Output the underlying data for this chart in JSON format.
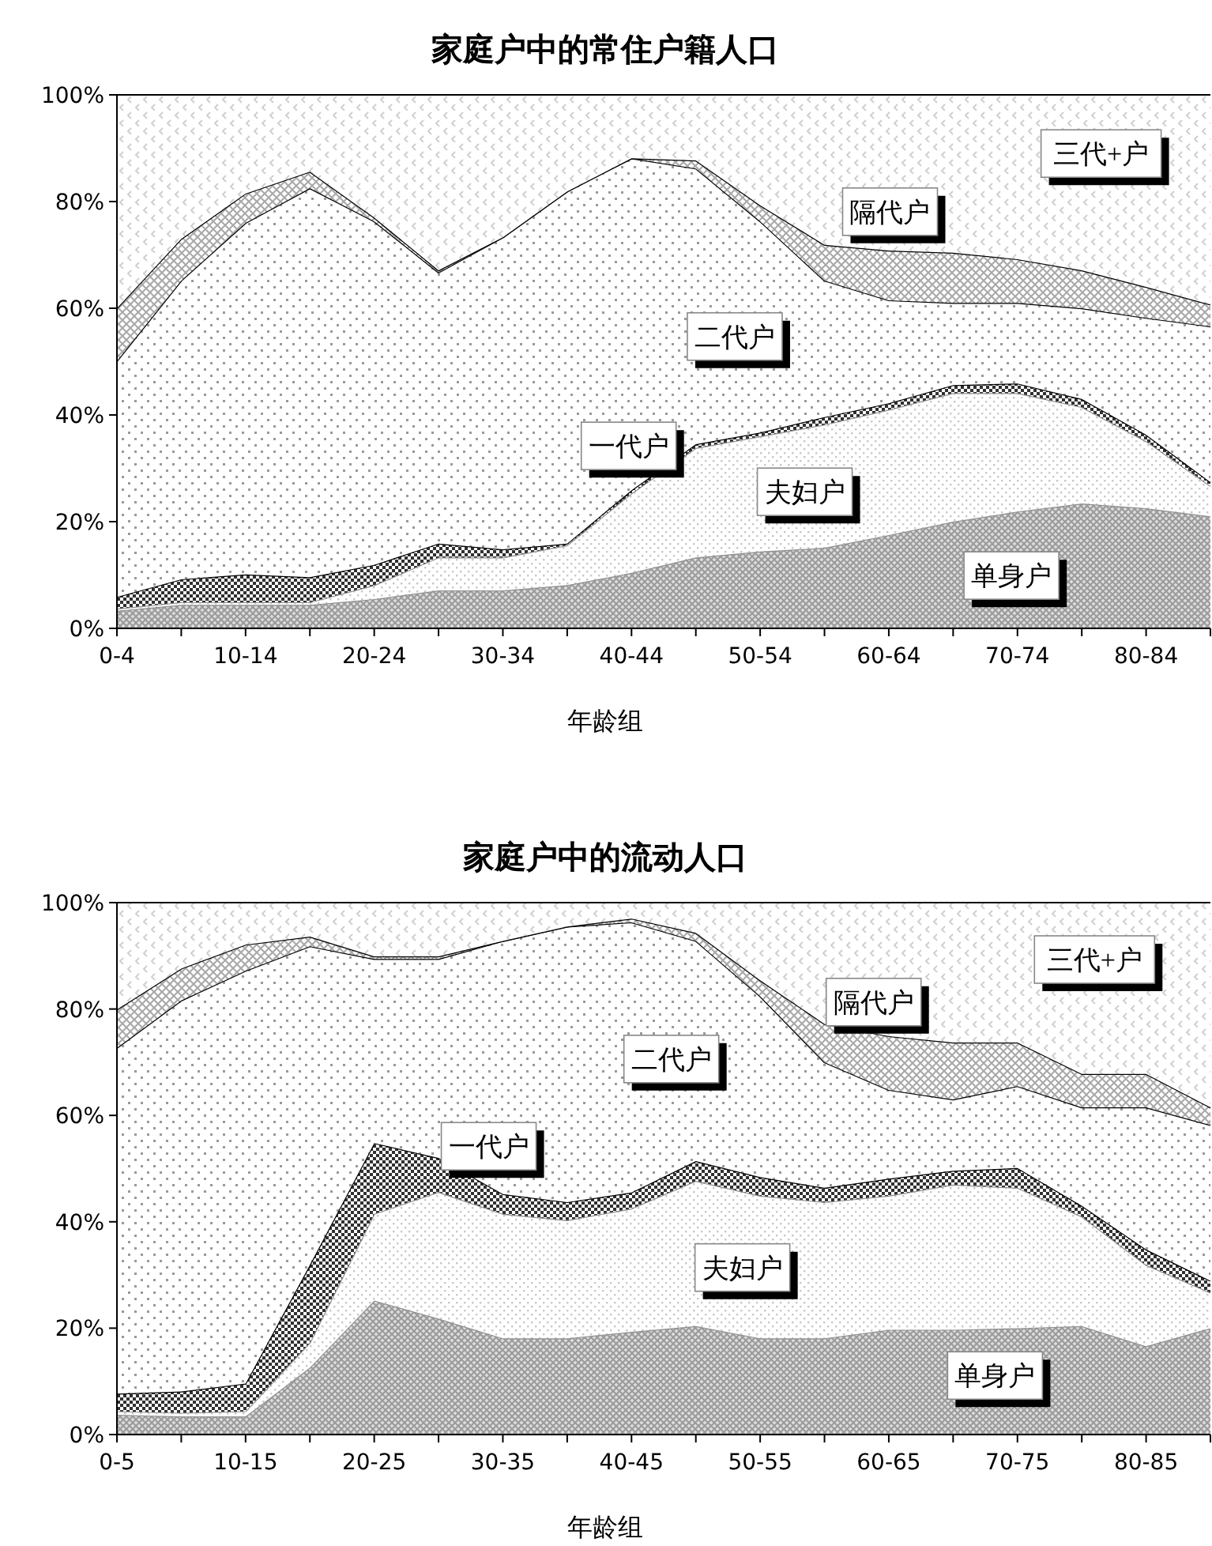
{
  "chart_data": [
    {
      "type": "area",
      "stacked": true,
      "title": "家庭户中的常住户籍人口",
      "xlabel": "年龄组",
      "grid": false,
      "categories": [
        "0-4",
        null,
        "10-14",
        null,
        "20-24",
        null,
        "30-34",
        null,
        "40-44",
        null,
        "50-54",
        null,
        "60-64",
        null,
        "70-74",
        null,
        "80-84",
        null
      ],
      "ylim": [
        0,
        100
      ],
      "yticks": [
        {
          "value": 0,
          "label": "0%"
        },
        {
          "value": 20,
          "label": "20%"
        },
        {
          "value": 40,
          "label": "40%"
        },
        {
          "value": 60,
          "label": "60%"
        },
        {
          "value": 80,
          "label": "80%"
        },
        {
          "value": 100,
          "label": "100%"
        }
      ],
      "series": [
        {
          "name": "单身户",
          "color": "#9a9a9a",
          "values": [
            3.3,
            4.4,
            4.4,
            4.4,
            5.5,
            7.1,
            7.1,
            8.1,
            10.4,
            13.3,
            14.4,
            15.1,
            17.5,
            20,
            21.9,
            23.4,
            22.5,
            21
          ]
        },
        {
          "name": "夫妇户",
          "color": "#c8c8c8",
          "values": [
            0.4,
            0.5,
            0.5,
            0.5,
            2.6,
            6.2,
            6.2,
            7.5,
            14.9,
            20.5,
            21.6,
            23.1,
            23.5,
            24.1,
            22.2,
            18.1,
            12.6,
            5.7
          ]
        },
        {
          "name": "一代户",
          "color": "#303030",
          "values": [
            2.2,
            4.3,
            5.2,
            4.7,
            3.8,
            2.6,
            1.5,
            0.3,
            0.6,
            0.7,
            0.7,
            1.4,
            1.2,
            1.5,
            1.8,
            1.5,
            1.2,
            0.7
          ]
        },
        {
          "name": "二代户",
          "color": "#e0e0e0",
          "values": [
            44.2,
            56,
            65.9,
            72.9,
            64.4,
            50.8,
            58.5,
            66,
            62.2,
            51.7,
            39.6,
            25.6,
            19.3,
            15.4,
            15.1,
            17,
            21.9,
            29.2
          ]
        },
        {
          "name": "隔代户",
          "color": "#a8a8a8",
          "values": [
            9.9,
            7.8,
            5.5,
            3.1,
            0.7,
            0.4,
            0,
            0,
            0,
            1.5,
            3,
            6.7,
            9.3,
            9.4,
            8.2,
            7.1,
            5.8,
            4.1
          ]
        },
        {
          "name": "三代+户",
          "color": "#d0d0d0",
          "values": [
            40,
            27,
            18.5,
            14.4,
            23,
            32.9,
            26.7,
            18.1,
            11.9,
            12.3,
            20.7,
            28.1,
            29.2,
            29.6,
            30.8,
            32.9,
            36,
            39.3
          ]
        }
      ]
    },
    {
      "type": "area",
      "stacked": true,
      "title": "家庭户中的流动人口",
      "xlabel": "年龄组",
      "grid": false,
      "categories": [
        "0-5",
        null,
        "10-15",
        null,
        "20-25",
        null,
        "30-35",
        null,
        "40-45",
        null,
        "50-55",
        null,
        "60-65",
        null,
        "70-75",
        null,
        "80-85",
        null
      ],
      "ylim": [
        0,
        100
      ],
      "yticks": [
        {
          "value": 0,
          "label": "0%"
        },
        {
          "value": 20,
          "label": "20%"
        },
        {
          "value": 40,
          "label": "40%"
        },
        {
          "value": 60,
          "label": "60%"
        },
        {
          "value": 80,
          "label": "80%"
        },
        {
          "value": 100,
          "label": "100%"
        }
      ],
      "series": [
        {
          "name": "单身户",
          "color": "#9a9a9a",
          "values": [
            3.7,
            3.4,
            3.4,
            12.6,
            25.2,
            21.8,
            18.1,
            18.1,
            19.3,
            20.4,
            18.1,
            18.1,
            19.7,
            19.7,
            20,
            20.4,
            16.6,
            20
          ]
        },
        {
          "name": "夫妇户",
          "color": "#c8c8c8",
          "values": [
            0.7,
            0.7,
            1,
            4.7,
            16.3,
            23.8,
            23.4,
            22.2,
            23.2,
            27.3,
            26.8,
            25.6,
            25.2,
            27.3,
            26.4,
            20.6,
            15.3,
            6.7
          ]
        },
        {
          "name": "一代户",
          "color": "#303030",
          "values": [
            3.3,
            4,
            5.2,
            14.6,
            13.3,
            6.4,
            3.7,
            3.4,
            3,
            3.7,
            3.5,
            2.7,
            3.2,
            2.6,
            3.7,
            2,
            2.9,
            2.2
          ]
        },
        {
          "name": "二代户",
          "color": "#e0e0e0",
          "values": [
            65,
            73.5,
            77.6,
            59.9,
            34.6,
            37.4,
            47.6,
            51.8,
            50.8,
            41.4,
            34,
            23.6,
            16.7,
            13.4,
            15.4,
            18.5,
            26.7,
            29.3
          ]
        },
        {
          "name": "隔代户",
          "color": "#a8a8a8",
          "values": [
            7.2,
            6,
            4.9,
            1.8,
            0.5,
            0.5,
            0,
            0,
            0.7,
            1.5,
            3,
            7.2,
            10.1,
            10.7,
            8.2,
            6.3,
            6.3,
            3.3
          ]
        },
        {
          "name": "三代+户",
          "color": "#d0d0d0",
          "values": [
            20.1,
            12.4,
            7.9,
            6.4,
            10.1,
            10.1,
            7.2,
            4.5,
            3,
            5.7,
            14.6,
            22.8,
            25.1,
            26.3,
            26.3,
            32.2,
            32.2,
            38.5
          ]
        }
      ]
    }
  ]
}
